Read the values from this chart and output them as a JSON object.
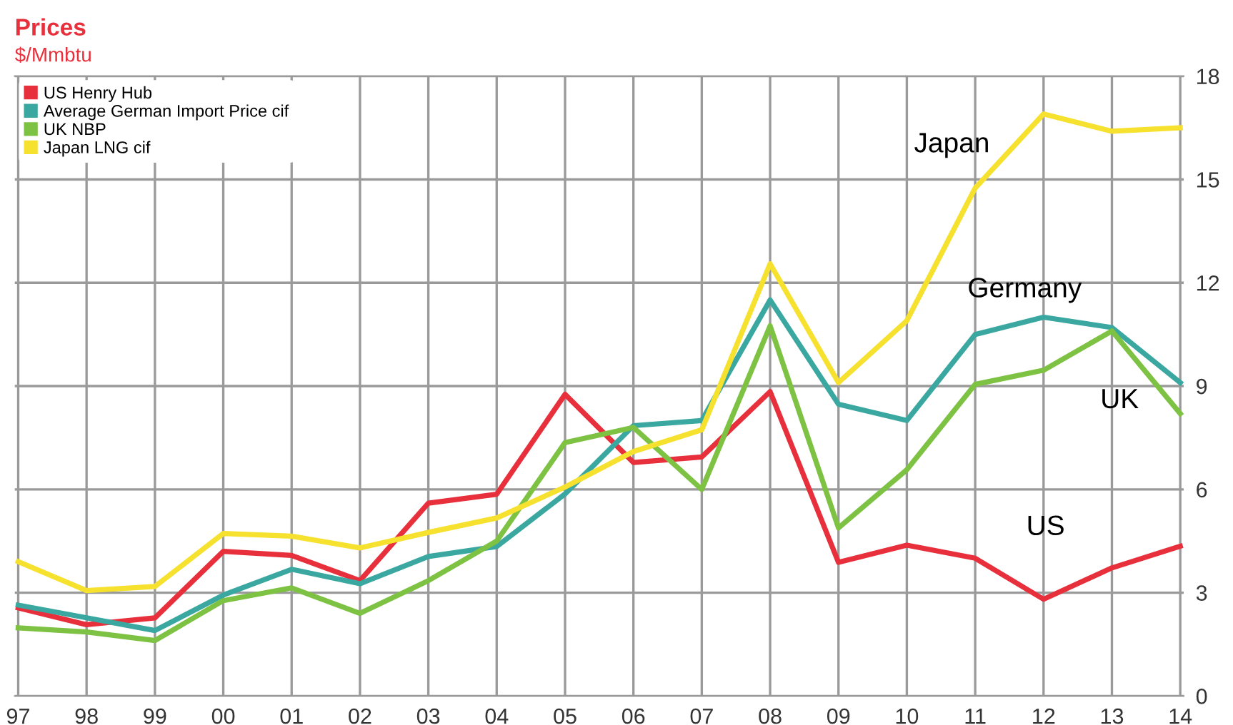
{
  "chart_data": {
    "type": "line",
    "title": "Prices",
    "subtitle": "$/Mmbtu",
    "categories": [
      "97",
      "98",
      "99",
      "00",
      "01",
      "02",
      "03",
      "04",
      "05",
      "06",
      "07",
      "08",
      "09",
      "10",
      "11",
      "12",
      "13",
      "14"
    ],
    "series": [
      {
        "name": "US Henry Hub",
        "color": "#e8303d",
        "values": [
          2.56,
          2.07,
          2.27,
          4.2,
          4.08,
          3.35,
          5.6,
          5.86,
          8.76,
          6.78,
          6.94,
          8.84,
          3.88,
          4.38,
          4.0,
          2.81,
          3.72,
          4.35
        ]
      },
      {
        "name": "Average German Import Price cif",
        "color": "#3aa8a0",
        "values": [
          2.64,
          2.27,
          1.9,
          2.93,
          3.68,
          3.26,
          4.05,
          4.34,
          5.87,
          7.85,
          8.0,
          11.5,
          8.47,
          8.0,
          10.5,
          11.0,
          10.7,
          9.1
        ]
      },
      {
        "name": "UK NBP",
        "color": "#7dc242",
        "values": [
          1.98,
          1.86,
          1.61,
          2.77,
          3.14,
          2.4,
          3.35,
          4.5,
          7.36,
          7.8,
          6.0,
          10.75,
          4.88,
          6.57,
          9.05,
          9.46,
          10.6,
          8.2
        ]
      },
      {
        "name": "Japan LNG cif",
        "color": "#f5e12e",
        "values": [
          3.9,
          3.06,
          3.18,
          4.72,
          4.64,
          4.3,
          4.75,
          5.17,
          6.07,
          7.1,
          7.73,
          12.55,
          9.1,
          10.9,
          14.75,
          16.9,
          16.4,
          16.5
        ]
      }
    ],
    "annotations": [
      "Japan",
      "Germany",
      "UK",
      "US"
    ],
    "ylim": [
      0,
      18
    ],
    "yticks": [
      0,
      3,
      6,
      9,
      12,
      15,
      18
    ],
    "grid": true,
    "legend": "top left",
    "marker": "none",
    "line_style": "solid"
  }
}
